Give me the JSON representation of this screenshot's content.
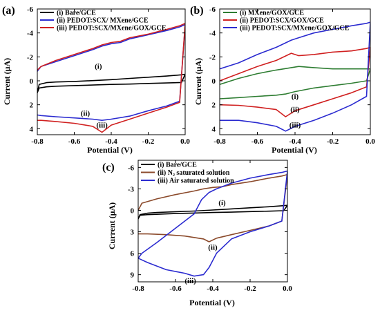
{
  "chart_data": [
    {
      "type": "line",
      "panel": "(a)",
      "xlabel": "Potential (V)",
      "ylabel": "Current (μA)",
      "xlim": [
        -0.8,
        0.0
      ],
      "ylim": [
        4.5,
        -6.0
      ],
      "y_inverted": true,
      "x_ticks": [
        -0.8,
        -0.6,
        -0.4,
        -0.2,
        0.0
      ],
      "x_tick_labels": [
        "-0.8",
        "-0.6",
        "-0.4",
        "-0.2",
        "0.0"
      ],
      "y_ticks": [
        -6,
        -4,
        -2,
        0,
        2,
        4
      ],
      "y_tick_labels": [
        "-6",
        "-4",
        "-2",
        "0",
        "2",
        "4"
      ],
      "legend_position": "top-left",
      "series": [
        {
          "name": "Bare/GCE",
          "legend_index": "(i)",
          "label": "(i)",
          "label_at": [
            -0.47,
            -1.0
          ],
          "color": "#000000",
          "x": [
            -0.8,
            -0.79,
            -0.75,
            -0.7,
            -0.6,
            -0.5,
            -0.4,
            -0.3,
            -0.2,
            -0.1,
            -0.02,
            0.0,
            -0.02,
            -0.1,
            -0.2,
            -0.3,
            -0.4,
            -0.5,
            -0.6,
            -0.7,
            -0.75,
            -0.79,
            -0.8
          ],
          "y": [
            1.0,
            0.6,
            0.5,
            0.45,
            0.4,
            0.35,
            0.3,
            0.27,
            0.22,
            0.18,
            0.14,
            -0.55,
            -0.5,
            -0.4,
            -0.3,
            -0.2,
            -0.1,
            -0.02,
            0.05,
            0.1,
            0.15,
            0.3,
            1.0
          ]
        },
        {
          "name": "PEDOT:SCX/ MXene/GCE",
          "legend_index": "(ii)",
          "label": "(ii)",
          "label_at": [
            -0.54,
            2.9
          ],
          "color": "#2b2bd0",
          "x": [
            -0.8,
            -0.78,
            -0.7,
            -0.6,
            -0.5,
            -0.45,
            -0.4,
            -0.3,
            -0.2,
            -0.1,
            -0.03,
            0.0,
            -0.03,
            -0.1,
            -0.2,
            -0.3,
            -0.35,
            -0.4,
            -0.45,
            -0.5,
            -0.6,
            -0.7,
            -0.78,
            -0.8
          ],
          "y": [
            2.85,
            2.9,
            3.0,
            3.1,
            3.2,
            3.3,
            3.2,
            2.95,
            2.5,
            2.1,
            1.7,
            -4.7,
            -4.5,
            -4.2,
            -3.85,
            -3.5,
            -3.2,
            -3.1,
            -2.9,
            -2.6,
            -2.1,
            -1.6,
            -1.2,
            -0.8
          ]
        },
        {
          "name": "PEDOT:SCX/MXene/GOX/GCE",
          "legend_index": "(iii)",
          "label": "(iii)",
          "label_at": [
            -0.45,
            3.9
          ],
          "color": "#d02020",
          "x": [
            -0.8,
            -0.78,
            -0.7,
            -0.6,
            -0.5,
            -0.45,
            -0.4,
            -0.3,
            -0.2,
            -0.1,
            -0.03,
            0.0,
            -0.03,
            -0.1,
            -0.2,
            -0.3,
            -0.35,
            -0.4,
            -0.45,
            -0.5,
            -0.6,
            -0.7,
            -0.78,
            -0.8
          ],
          "y": [
            3.3,
            3.3,
            3.4,
            3.55,
            3.8,
            4.3,
            3.7,
            3.2,
            2.7,
            2.2,
            1.8,
            -4.8,
            -4.6,
            -4.3,
            -3.9,
            -3.6,
            -3.3,
            -3.2,
            -3.0,
            -2.7,
            -2.2,
            -1.7,
            -1.2,
            -0.9
          ]
        }
      ]
    },
    {
      "type": "line",
      "panel": "(b)",
      "xlabel": "Potential (V)",
      "ylabel": "Current (μA)",
      "xlim": [
        -0.8,
        0.0
      ],
      "ylim": [
        4.5,
        -6.0
      ],
      "y_inverted": true,
      "x_ticks": [
        -0.8,
        -0.6,
        -0.4,
        -0.2,
        0.0
      ],
      "x_tick_labels": [
        "-0.8",
        "-0.6",
        "-0.4",
        "-0.2",
        "0.0"
      ],
      "y_ticks": [
        -6,
        -4,
        -2,
        0,
        2,
        4
      ],
      "y_tick_labels": [
        "-6",
        "-4",
        "-2",
        "0",
        "2",
        "4"
      ],
      "legend_position": "top-left",
      "series": [
        {
          "name": "MXene/GOX/GCE",
          "legend_index": "(i)",
          "label": "(i)",
          "label_at": [
            -0.4,
            1.5
          ],
          "color": "#2e7d32",
          "x": [
            -0.8,
            -0.7,
            -0.6,
            -0.5,
            -0.45,
            -0.4,
            -0.3,
            -0.2,
            -0.1,
            -0.02,
            0.0,
            -0.02,
            -0.1,
            -0.2,
            -0.3,
            -0.38,
            -0.42,
            -0.5,
            -0.6,
            -0.7,
            -0.8
          ],
          "y": [
            1.5,
            1.4,
            1.3,
            1.2,
            1.1,
            0.9,
            0.6,
            0.4,
            0.2,
            0.0,
            -1.0,
            -1.0,
            -1.0,
            -1.0,
            -1.1,
            -1.2,
            -1.1,
            -0.9,
            -0.6,
            -0.2,
            0.3
          ]
        },
        {
          "name": "PEDOT:SCX/GOX/GCE",
          "legend_index": "(ii)",
          "label": "(ii)",
          "label_at": [
            -0.4,
            2.6
          ],
          "color": "#d02020",
          "x": [
            -0.8,
            -0.7,
            -0.6,
            -0.5,
            -0.45,
            -0.4,
            -0.3,
            -0.2,
            -0.1,
            -0.02,
            0.0,
            -0.02,
            -0.1,
            -0.2,
            -0.3,
            -0.38,
            -0.42,
            -0.5,
            -0.6,
            -0.7,
            -0.8
          ],
          "y": [
            2.0,
            2.05,
            2.2,
            2.4,
            3.0,
            2.5,
            2.0,
            1.5,
            1.0,
            0.5,
            -2.8,
            -2.7,
            -2.5,
            -2.4,
            -2.2,
            -2.1,
            -2.3,
            -1.7,
            -1.2,
            -0.6,
            0.0
          ]
        },
        {
          "name": "PEDOT:SCX/MXene/GOX/GCE",
          "legend_index": "(iii)",
          "label": "(iii)",
          "label_at": [
            -0.4,
            3.9
          ],
          "color": "#2b2bd0",
          "x": [
            -0.8,
            -0.7,
            -0.6,
            -0.5,
            -0.45,
            -0.4,
            -0.3,
            -0.2,
            -0.1,
            -0.02,
            0.0,
            -0.02,
            -0.1,
            -0.2,
            -0.3,
            -0.38,
            -0.42,
            -0.5,
            -0.6,
            -0.7,
            -0.8
          ],
          "y": [
            3.3,
            3.3,
            3.5,
            3.8,
            4.2,
            3.8,
            3.3,
            2.7,
            2.0,
            1.3,
            -4.9,
            -4.8,
            -4.6,
            -4.3,
            -4.0,
            -3.6,
            -3.4,
            -2.8,
            -2.2,
            -1.5,
            -1.0
          ]
        }
      ]
    },
    {
      "type": "line",
      "panel": "(c)",
      "xlabel": "Potential (V)",
      "ylabel": "Current (μA)",
      "xlim": [
        -0.8,
        0.0
      ],
      "ylim": [
        10.0,
        -7.0
      ],
      "y_inverted": true,
      "x_ticks": [
        -0.8,
        -0.6,
        -0.4,
        -0.2,
        0.0
      ],
      "x_tick_labels": [
        "-0.8",
        "-0.6",
        "-0.4",
        "-0.2",
        "0.0"
      ],
      "y_ticks": [
        -6,
        -3,
        0,
        3,
        6,
        9
      ],
      "y_tick_labels": [
        "-6",
        "-3",
        "0",
        "3",
        "6",
        "9"
      ],
      "legend_position": "top-left",
      "series": [
        {
          "name": "Bare/GCE",
          "legend_index": "(i)",
          "label": "(i)",
          "label_at": [
            -0.35,
            -0.7
          ],
          "color": "#000000",
          "x": [
            -0.8,
            -0.79,
            -0.75,
            -0.7,
            -0.6,
            -0.5,
            -0.4,
            -0.3,
            -0.2,
            -0.1,
            -0.02,
            0.0,
            -0.02,
            -0.1,
            -0.2,
            -0.3,
            -0.4,
            -0.5,
            -0.6,
            -0.7,
            -0.75,
            -0.79,
            -0.8
          ],
          "y": [
            1.2,
            0.7,
            0.6,
            0.55,
            0.45,
            0.38,
            0.3,
            0.25,
            0.18,
            0.12,
            0.05,
            -0.7,
            -0.65,
            -0.5,
            -0.35,
            -0.2,
            -0.05,
            0.1,
            0.2,
            0.3,
            0.4,
            0.6,
            1.2
          ]
        },
        {
          "name": "N₂ saturated solution",
          "legend_index": "(ii)",
          "label": "(ii)",
          "label_at": [
            -0.4,
            5.5
          ],
          "color": "#8b4a2b",
          "x": [
            -0.8,
            -0.75,
            -0.65,
            -0.55,
            -0.5,
            -0.45,
            -0.42,
            -0.38,
            -0.3,
            -0.2,
            -0.1,
            -0.03,
            0.0,
            -0.03,
            -0.1,
            -0.2,
            -0.3,
            -0.35,
            -0.4,
            -0.45,
            -0.5,
            -0.6,
            -0.7,
            -0.78,
            -0.8
          ],
          "y": [
            3.3,
            3.3,
            3.4,
            3.6,
            3.8,
            4.0,
            4.4,
            3.9,
            3.4,
            2.8,
            2.2,
            1.5,
            -5.0,
            -4.8,
            -4.5,
            -4.0,
            -3.6,
            -3.3,
            -3.2,
            -3.0,
            -2.7,
            -2.2,
            -1.6,
            -1.0,
            0.0
          ]
        },
        {
          "name": "Air saturated solution",
          "legend_index": "(iii)",
          "label": "(iii)",
          "label_at": [
            -0.52,
            10.2
          ],
          "color": "#2b2bd0",
          "x": [
            -0.8,
            -0.75,
            -0.65,
            -0.55,
            -0.5,
            -0.45,
            -0.42,
            -0.38,
            -0.3,
            -0.2,
            -0.1,
            -0.03,
            0.0,
            -0.03,
            -0.1,
            -0.2,
            -0.3,
            -0.38,
            -0.42,
            -0.46,
            -0.5,
            -0.6,
            -0.7,
            -0.78,
            -0.8
          ],
          "y": [
            6.7,
            7.3,
            8.3,
            8.8,
            9.2,
            9.0,
            8.0,
            6.0,
            4.0,
            3.0,
            2.2,
            1.5,
            -5.5,
            -5.3,
            -5.0,
            -4.5,
            -3.8,
            -3.0,
            -2.5,
            -1.5,
            0.5,
            2.5,
            4.5,
            6.0,
            6.7
          ]
        }
      ]
    }
  ]
}
